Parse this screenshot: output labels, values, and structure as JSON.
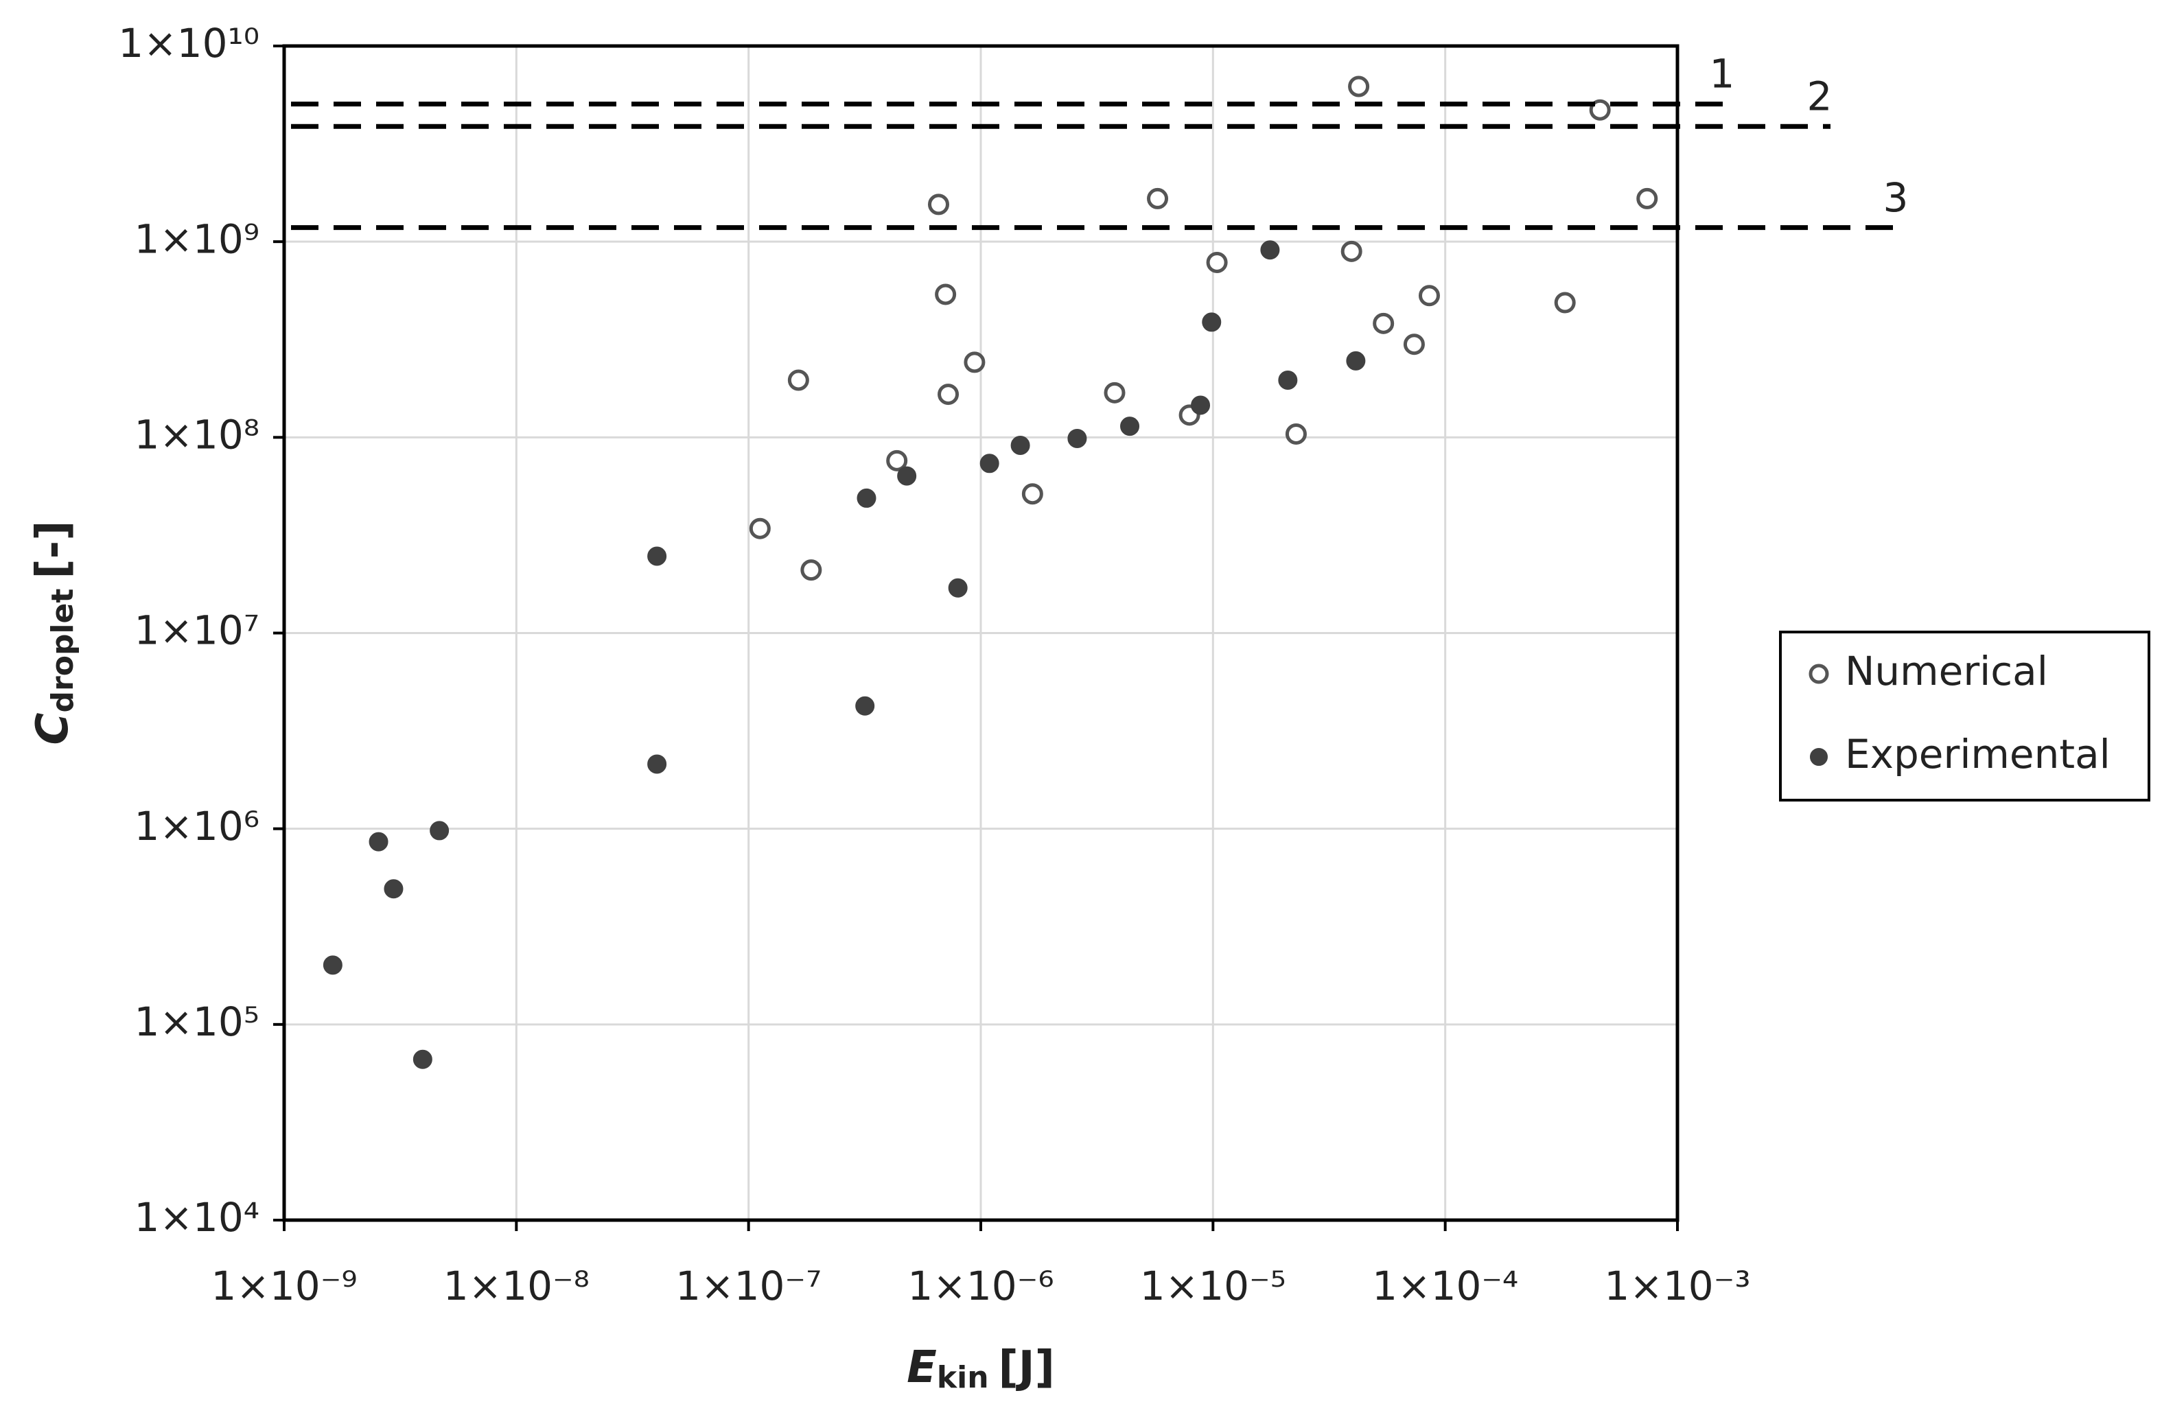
{
  "chart_data": {
    "type": "scatter",
    "xlabel": "E",
    "xlabel_subscript": "kin",
    "xlabel_unit": "[J]",
    "ylabel": "C",
    "ylabel_subscript": "droplet",
    "ylabel_unit": "[-]",
    "xscale": "log",
    "yscale": "log",
    "grid": true,
    "legend": "right",
    "xlim": [
      1e-09,
      0.001
    ],
    "xticks": [
      {
        "value": 1e-09,
        "label": "1×10⁻⁹"
      },
      {
        "value": 1e-08,
        "label": "1×10⁻⁸"
      },
      {
        "value": 1e-07,
        "label": "1×10⁻⁷"
      },
      {
        "value": 1e-06,
        "label": "1×10⁻⁶"
      },
      {
        "value": 1e-05,
        "label": "1×10⁻⁵"
      },
      {
        "value": 0.0001,
        "label": "1×10⁻⁴"
      },
      {
        "value": 0.001,
        "label": "1×10⁻³"
      }
    ],
    "ylim": [
      10000.0,
      10000000000.0
    ],
    "yticks": [
      {
        "value": 10000.0,
        "label": "1×10⁴"
      },
      {
        "value": 100000.0,
        "label": "1×10⁵"
      },
      {
        "value": 1000000.0,
        "label": "1×10⁶"
      },
      {
        "value": 10000000.0,
        "label": "1×10⁷"
      },
      {
        "value": 100000000.0,
        "label": "1×10⁸"
      },
      {
        "value": 1000000000.0,
        "label": "1×10⁹"
      },
      {
        "value": 10000000000.0,
        "label": "1×10¹⁰"
      }
    ],
    "reference_lines": [
      {
        "label": "1",
        "value": 5050000000.0,
        "color": "#000000"
      },
      {
        "label": "2",
        "value": 3880000000.0,
        "color": "#000000"
      },
      {
        "label": "3",
        "value": 1180000000.0,
        "color": "#000000"
      }
    ],
    "series": [
      {
        "name": "Numerical",
        "color": "#555555",
        "marker": "open",
        "x": [
          4.24e-05,
          0.000464,
          6.58e-07,
          5.77e-06,
          0.00074,
          1.04e-05,
          3.95e-05,
          7.05e-07,
          8.54e-05,
          0.000328,
          5.42e-05,
          7.35e-05,
          9.4e-07,
          1.64e-07,
          7.24e-07,
          3.77e-06,
          7.92e-06,
          2.28e-05,
          4.35e-07,
          1.67e-06,
          1.12e-07,
          1.86e-07
        ],
        "values": [
          6210000000.0,
          4710000000.0,
          1550000000.0,
          1660000000.0,
          1660000000.0,
          783000000.0,
          892000000.0,
          538000000.0,
          530000000.0,
          488000000.0,
          382000000.0,
          299000000.0,
          242000000.0,
          196000000.0,
          166000000.0,
          169000000.0,
          130000000.0,
          104000000.0,
          76000000.0,
          51400000.0,
          34200000.0,
          21000000.0
        ]
      },
      {
        "name": "Experimental",
        "color": "#404040",
        "marker": "filled",
        "x": [
          1.76e-05,
          9.86e-06,
          2.1e-05,
          4.12e-05,
          8.83e-06,
          4.38e-06,
          2.6e-06,
          1.48e-06,
          1.09e-06,
          4.8e-07,
          3.22e-07,
          4.03e-08,
          7.97e-07,
          3.17e-07,
          4.03e-08,
          4.66e-09,
          2.55e-09,
          2.96e-09,
          1.62e-09,
          3.95e-09
        ],
        "values": [
          907000000.0,
          388000000.0,
          196000000.0,
          246000000.0,
          146000000.0,
          114000000.0,
          98700000.0,
          91000000.0,
          73600000.0,
          63500000.0,
          48900000.0,
          24700000.0,
          17000000.0,
          4240000.0,
          2140000.0,
          978000.0,
          858000.0,
          493000.0,
          201000.0,
          66300.0
        ]
      }
    ]
  }
}
